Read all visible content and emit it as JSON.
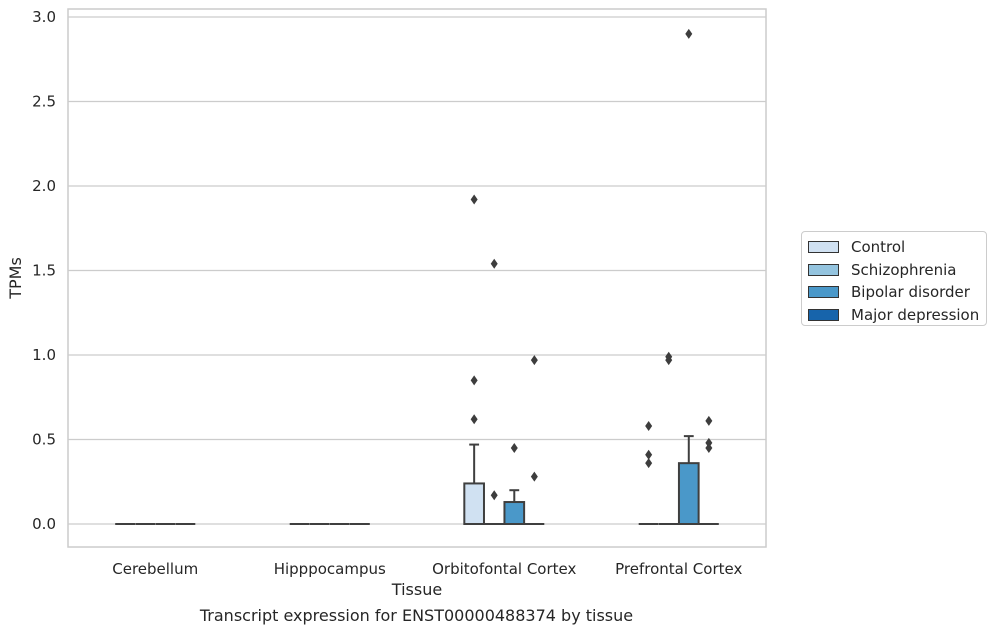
{
  "chart_data": {
    "type": "box",
    "title": "",
    "caption": "Transcript expression for ENST00000488374 by tissue",
    "xlabel": "Tissue",
    "ylabel": "TPMs",
    "ylim": [
      -0.14,
      3.05
    ],
    "yticks": [
      "0.0",
      "0.5",
      "1.0",
      "1.5",
      "2.0",
      "2.5",
      "3.0"
    ],
    "ytick_values": [
      0,
      0.5,
      1.0,
      1.5,
      2.0,
      2.5,
      3.0
    ],
    "grid": "horizontal",
    "legend_position": "right",
    "categories": [
      "Cerebellum",
      "Hipppocampus",
      "Orbitofontal Cortex",
      "Prefrontal Cortex"
    ],
    "series": [
      {
        "name": "Control",
        "color": "#d0e1f2",
        "boxes": [
          {
            "q1": 0,
            "median": 0,
            "q3": 0,
            "whisker_low": 0,
            "whisker_high": 0,
            "outliers": []
          },
          {
            "q1": 0,
            "median": 0,
            "q3": 0,
            "whisker_low": 0,
            "whisker_high": 0,
            "outliers": []
          },
          {
            "q1": 0,
            "median": 0,
            "q3": 0.24,
            "whisker_low": 0,
            "whisker_high": 0.47,
            "outliers": [
              0.62,
              0.85,
              1.92
            ]
          },
          {
            "q1": 0,
            "median": 0,
            "q3": 0,
            "whisker_low": 0,
            "whisker_high": 0,
            "outliers": [
              0.36,
              0.41,
              0.58
            ]
          }
        ]
      },
      {
        "name": "Schizophrenia",
        "color": "#94c4df",
        "boxes": [
          {
            "q1": 0,
            "median": 0,
            "q3": 0,
            "whisker_low": 0,
            "whisker_high": 0,
            "outliers": []
          },
          {
            "q1": 0,
            "median": 0,
            "q3": 0,
            "whisker_low": 0,
            "whisker_high": 0,
            "outliers": []
          },
          {
            "q1": 0,
            "median": 0,
            "q3": 0,
            "whisker_low": 0,
            "whisker_high": 0,
            "outliers": [
              0.17,
              1.54
            ]
          },
          {
            "q1": 0,
            "median": 0,
            "q3": 0,
            "whisker_low": 0,
            "whisker_high": 0,
            "outliers": [
              0.97,
              0.99
            ]
          }
        ]
      },
      {
        "name": "Bipolar disorder",
        "color": "#4a98c9",
        "boxes": [
          {
            "q1": 0,
            "median": 0,
            "q3": 0,
            "whisker_low": 0,
            "whisker_high": 0,
            "outliers": []
          },
          {
            "q1": 0,
            "median": 0,
            "q3": 0,
            "whisker_low": 0,
            "whisker_high": 0,
            "outliers": []
          },
          {
            "q1": 0,
            "median": 0,
            "q3": 0.13,
            "whisker_low": 0,
            "whisker_high": 0.2,
            "outliers": [
              0.45
            ]
          },
          {
            "q1": 0,
            "median": 0,
            "q3": 0.36,
            "whisker_low": 0,
            "whisker_high": 0.52,
            "outliers": [
              2.9
            ]
          }
        ]
      },
      {
        "name": "Major depression",
        "color": "#1764ab",
        "boxes": [
          {
            "q1": 0,
            "median": 0,
            "q3": 0,
            "whisker_low": 0,
            "whisker_high": 0,
            "outliers": []
          },
          {
            "q1": 0,
            "median": 0,
            "q3": 0,
            "whisker_low": 0,
            "whisker_high": 0,
            "outliers": []
          },
          {
            "q1": 0,
            "median": 0,
            "q3": 0,
            "whisker_low": 0,
            "whisker_high": 0,
            "outliers": [
              0.28,
              0.97
            ]
          },
          {
            "q1": 0,
            "median": 0,
            "q3": 0,
            "whisker_low": 0,
            "whisker_high": 0,
            "outliers": [
              0.45,
              0.48,
              0.61
            ]
          }
        ]
      }
    ]
  }
}
